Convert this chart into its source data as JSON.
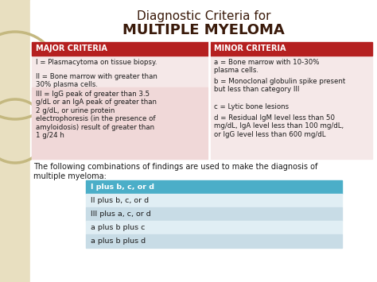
{
  "title_line1": "Diagnostic Criteria for",
  "title_line2": "MULTIPLE MYELOMA",
  "bg_color": "#ffffff",
  "table_bg_left": "#f0d8d8",
  "table_bg_right": "#f5e8e8",
  "table_bg_left_dark": "#ddb8b8",
  "header_color": "#b52020",
  "header_text_color": "#ffffff",
  "title_color": "#3a1a0a",
  "major_header": "MAJOR CRITERIA",
  "minor_header": "MINOR CRITERIA",
  "major_item1": "I = Plasmacytoma on tissue biopsy.",
  "major_item2": "II = Bone marrow with greater than\n30% plasma cells.",
  "major_item3": "III = IgG peak of greater than 3.5\ng/dL or an IgA peak of greater than\n2 g/dL, or urine protein\nelectrophoresis (in the presence of\namyloidosis) result of greater than\n1 g/24 h",
  "minor_item1": "a = Bone marrow with 10-30%\nplasma cells.",
  "minor_item2": "b = Monoclonal globulin spike present\nbut less than category III",
  "minor_item3": "c = Lytic bone lesions",
  "minor_item4": "d = Residual IgM level less than 50\nmg/dL, IgA level less than 100 mg/dL,\nor IgG level less than 600 mg/dL",
  "footer_text": "The following combinations of findings are used to make the diagnosis of\nmultiple myeloma:",
  "footer_text_color": "#1a1a1a",
  "combinations": [
    "I plus b, c, or d",
    "II plus b, c, or d",
    "III plus a, c, or d",
    "a plus b plus c",
    "a plus b plus d"
  ],
  "combo_header_color": "#4baec8",
  "combo_row1_color": "#e0eef4",
  "combo_row2_color": "#c8dce6",
  "combo_header_text": "#ffffff",
  "combo_row_text": "#1a1a1a",
  "sidebar_color": "#d8cc9a",
  "sidebar_circle_color": "#c4b880",
  "outer_bg": "#e8dfc0"
}
